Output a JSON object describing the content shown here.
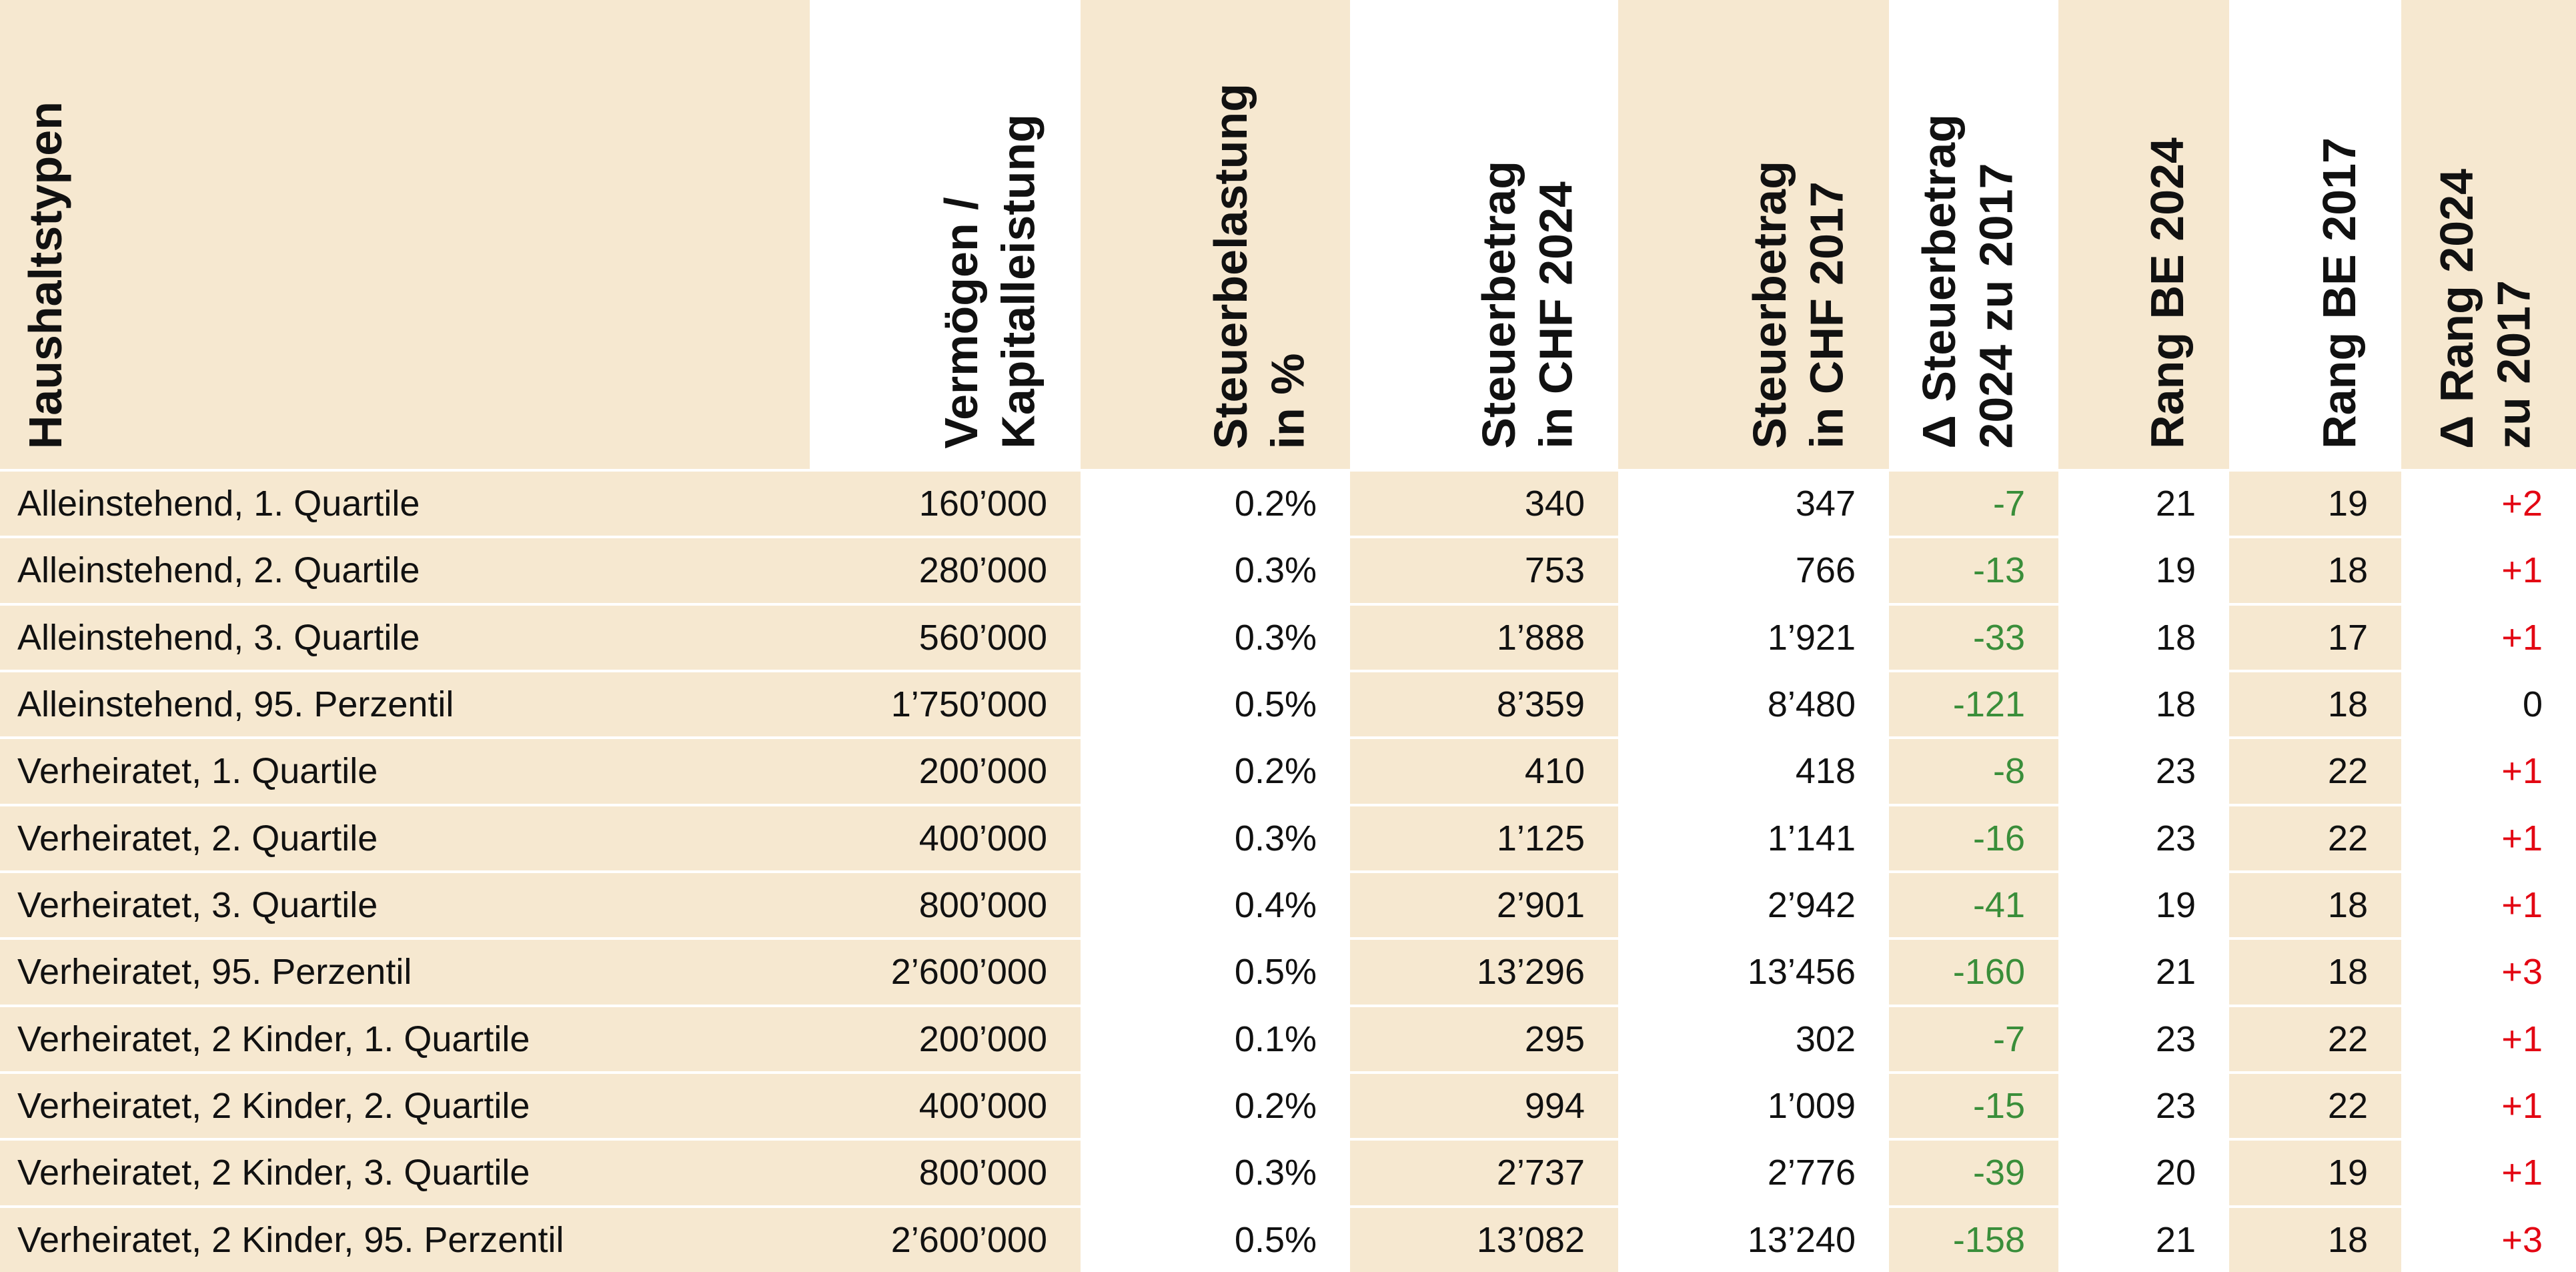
{
  "colors": {
    "beige": "#f6e8d0",
    "white": "#ffffff",
    "text": "#111111",
    "delta_negative_green": "#3a8e3a",
    "delta_positive_red": "#e30613"
  },
  "table": {
    "columns": [
      {
        "id": "haushaltstypen",
        "label": "Haushaltstypen",
        "align": "left",
        "header_shade": "beige",
        "body_shade": "beige",
        "color_by_sign": false
      },
      {
        "id": "vermoegen-kapitalleistung",
        "label": "Vermögen /\nKapitalleistung",
        "align": "right",
        "header_shade": "white",
        "body_shade": "beige",
        "color_by_sign": false
      },
      {
        "id": "steuerbelastung-prozent",
        "label": "Steuerbelastung\nin %",
        "align": "right",
        "header_shade": "beige",
        "body_shade": "white",
        "color_by_sign": false
      },
      {
        "id": "steuerbetrag-chf-2024",
        "label": "Steuerbetrag\nin CHF 2024",
        "align": "right",
        "header_shade": "white",
        "body_shade": "beige",
        "color_by_sign": false
      },
      {
        "id": "steuerbetrag-chf-2017",
        "label": "Steuerbetrag\nin CHF 2017",
        "align": "right",
        "header_shade": "beige",
        "body_shade": "white",
        "color_by_sign": false
      },
      {
        "id": "delta-steuerbetrag",
        "label": "Δ Steuerbetrag\n2024 zu 2017",
        "align": "right",
        "header_shade": "white",
        "body_shade": "beige",
        "color_by_sign": true
      },
      {
        "id": "rang-be-2024",
        "label": "Rang BE 2024",
        "align": "right",
        "header_shade": "beige",
        "body_shade": "white",
        "color_by_sign": false
      },
      {
        "id": "rang-be-2017",
        "label": "Rang BE 2017",
        "align": "right",
        "header_shade": "white",
        "body_shade": "beige",
        "color_by_sign": false
      },
      {
        "id": "delta-rang",
        "label": "Δ Rang 2024\nzu 2017",
        "align": "right",
        "header_shade": "beige",
        "body_shade": "white",
        "color_by_sign": true
      }
    ],
    "rows": [
      [
        "Alleinstehend, 1. Quartile",
        "160’000",
        "0.2%",
        "340",
        "347",
        "-7",
        "21",
        "19",
        "+2"
      ],
      [
        "Alleinstehend, 2. Quartile",
        "280’000",
        "0.3%",
        "753",
        "766",
        "-13",
        "19",
        "18",
        "+1"
      ],
      [
        "Alleinstehend, 3. Quartile",
        "560’000",
        "0.3%",
        "1’888",
        "1’921",
        "-33",
        "18",
        "17",
        "+1"
      ],
      [
        "Alleinstehend, 95. Perzentil",
        "1’750’000",
        "0.5%",
        "8’359",
        "8’480",
        "-121",
        "18",
        "18",
        "0"
      ],
      [
        "Verheiratet, 1. Quartile",
        "200’000",
        "0.2%",
        "410",
        "418",
        "-8",
        "23",
        "22",
        "+1"
      ],
      [
        "Verheiratet, 2. Quartile",
        "400’000",
        "0.3%",
        "1’125",
        "1’141",
        "-16",
        "23",
        "22",
        "+1"
      ],
      [
        "Verheiratet, 3. Quartile",
        "800’000",
        "0.4%",
        "2’901",
        "2’942",
        "-41",
        "19",
        "18",
        "+1"
      ],
      [
        "Verheiratet, 95. Perzentil",
        "2’600’000",
        "0.5%",
        "13’296",
        "13’456",
        "-160",
        "21",
        "18",
        "+3"
      ],
      [
        "Verheiratet, 2 Kinder, 1. Quartile",
        "200’000",
        "0.1%",
        "295",
        "302",
        "-7",
        "23",
        "22",
        "+1"
      ],
      [
        "Verheiratet, 2 Kinder, 2. Quartile",
        "400’000",
        "0.2%",
        "994",
        "1’009",
        "-15",
        "23",
        "22",
        "+1"
      ],
      [
        "Verheiratet, 2 Kinder, 3. Quartile",
        "800’000",
        "0.3%",
        "2’737",
        "2’776",
        "-39",
        "20",
        "19",
        "+1"
      ],
      [
        "Verheiratet, 2 Kinder, 95. Perzentil",
        "2’600’000",
        "0.5%",
        "13’082",
        "13’240",
        "-158",
        "21",
        "18",
        "+3"
      ]
    ]
  },
  "chart_data": {
    "type": "table",
    "columns": [
      "Haushaltstypen",
      "Vermögen / Kapitalleistung",
      "Steuerbelastung in %",
      "Steuerbetrag in CHF 2024",
      "Steuerbetrag in CHF 2017",
      "Δ Steuerbetrag 2024 zu 2017",
      "Rang BE 2024",
      "Rang BE 2017",
      "Δ Rang 2024 zu 2017"
    ],
    "rows": [
      [
        "Alleinstehend, 1. Quartile",
        160000,
        0.2,
        340,
        347,
        -7,
        21,
        19,
        2
      ],
      [
        "Alleinstehend, 2. Quartile",
        280000,
        0.3,
        753,
        766,
        -13,
        19,
        18,
        1
      ],
      [
        "Alleinstehend, 3. Quartile",
        560000,
        0.3,
        1888,
        1921,
        -33,
        18,
        17,
        1
      ],
      [
        "Alleinstehend, 95. Perzentil",
        1750000,
        0.5,
        8359,
        8480,
        -121,
        18,
        18,
        0
      ],
      [
        "Verheiratet, 1. Quartile",
        200000,
        0.2,
        410,
        418,
        -8,
        23,
        22,
        1
      ],
      [
        "Verheiratet, 2. Quartile",
        400000,
        0.3,
        1125,
        1141,
        -16,
        23,
        22,
        1
      ],
      [
        "Verheiratet, 3. Quartile",
        800000,
        0.4,
        2901,
        2942,
        -41,
        19,
        18,
        1
      ],
      [
        "Verheiratet, 95. Perzentil",
        2600000,
        0.5,
        13296,
        13456,
        -160,
        21,
        18,
        3
      ],
      [
        "Verheiratet, 2 Kinder, 1. Quartile",
        200000,
        0.1,
        295,
        302,
        -7,
        23,
        22,
        1
      ],
      [
        "Verheiratet, 2 Kinder, 2. Quartile",
        400000,
        0.2,
        994,
        1009,
        -15,
        23,
        22,
        1
      ],
      [
        "Verheiratet, 2 Kinder, 3. Quartile",
        800000,
        0.3,
        2737,
        2776,
        -39,
        20,
        19,
        1
      ],
      [
        "Verheiratet, 2 Kinder, 95. Perzentil",
        2600000,
        0.5,
        13082,
        13240,
        -158,
        21,
        18,
        3
      ]
    ]
  }
}
